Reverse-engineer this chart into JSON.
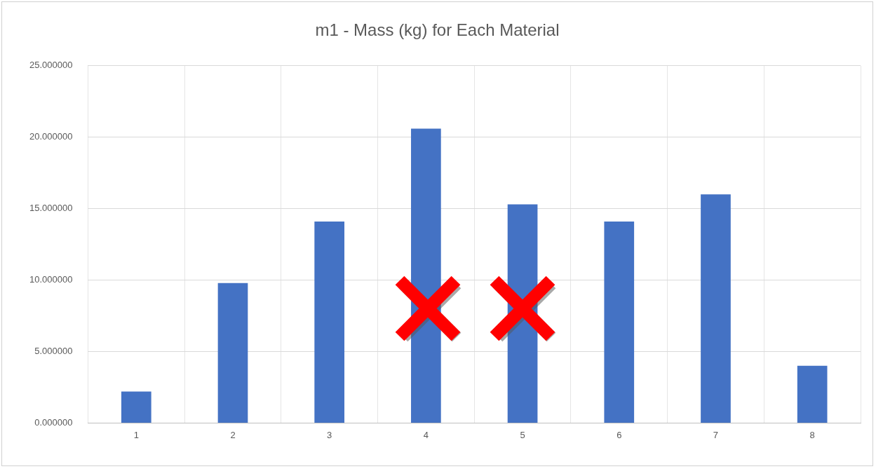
{
  "chart_data": {
    "type": "bar",
    "title": "m1 - Mass (kg) for Each Material",
    "categories": [
      "1",
      "2",
      "3",
      "4",
      "5",
      "6",
      "7",
      "8"
    ],
    "values": [
      2.2,
      9.8,
      14.1,
      20.6,
      15.3,
      14.1,
      16.0,
      4.0
    ],
    "color": "#4472c4",
    "ylim": [
      0,
      25
    ],
    "yticks": [
      {
        "value": 0,
        "label": "0.000000"
      },
      {
        "value": 5,
        "label": "5.000000"
      },
      {
        "value": 10,
        "label": "10.000000"
      },
      {
        "value": 15,
        "label": "15.000000"
      },
      {
        "value": 20,
        "label": "20.000000"
      },
      {
        "value": 25,
        "label": "25.000000"
      }
    ],
    "grid": true
  }
}
